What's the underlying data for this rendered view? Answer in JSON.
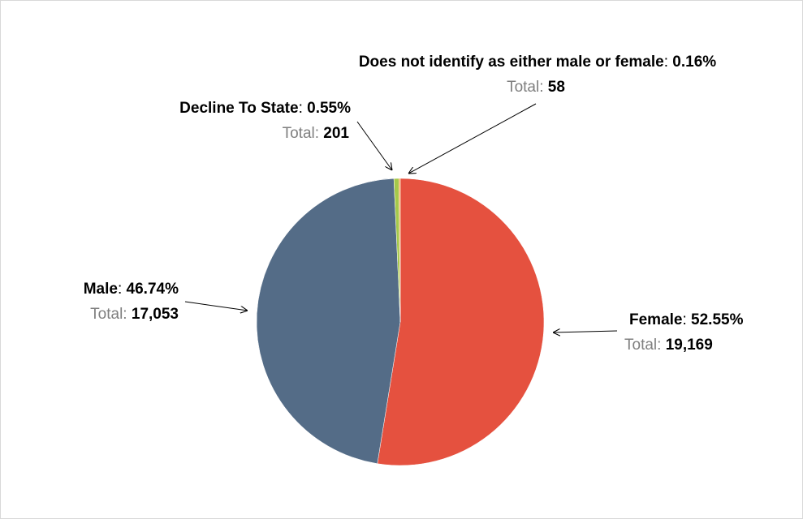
{
  "chart_data": {
    "type": "pie",
    "categories": [
      "Female",
      "Male",
      "Decline To State",
      "Does not identify as either male or female"
    ],
    "values": [
      52.55,
      46.74,
      0.55,
      0.16
    ],
    "value_labels": [
      "52.55%",
      "46.74%",
      "0.55%",
      "0.16%"
    ],
    "colors": [
      "#e5513f",
      "#546c87",
      "#a5c84a",
      "#f2a33a"
    ],
    "separator": ":",
    "total_label": "Total:",
    "totals": [
      19169,
      17053,
      201,
      58
    ],
    "total_labels": [
      "19,169",
      "17,053",
      "201",
      "58"
    ]
  }
}
